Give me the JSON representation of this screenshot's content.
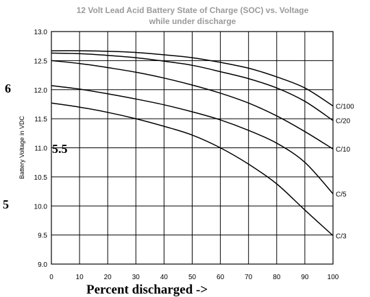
{
  "chart_data": {
    "type": "line",
    "title": "12 Volt Lead Acid Battery State of Charge (SOC) vs. Voltage",
    "subtitle": "while under discharge",
    "ylabel": "Battery Voltage in VDC",
    "xlabel": "Percent discharged ->",
    "xlim": [
      0,
      100
    ],
    "ylim": [
      9.0,
      13.0
    ],
    "xticks": [
      "0",
      "10",
      "20",
      "30",
      "40",
      "50",
      "60",
      "70",
      "80",
      "90",
      "100"
    ],
    "yticks": [
      "9.0",
      "9.5",
      "10.0",
      "10.5",
      "11.0",
      "11.5",
      "12.0",
      "12.5",
      "13.0"
    ],
    "grid": true,
    "series": [
      {
        "name": "C/100",
        "x": [
          0,
          10,
          20,
          30,
          40,
          50,
          60,
          70,
          80,
          90,
          100
        ],
        "y": [
          12.67,
          12.67,
          12.66,
          12.64,
          12.6,
          12.55,
          12.47,
          12.37,
          12.22,
          12.03,
          11.72
        ]
      },
      {
        "name": "C/20",
        "x": [
          0,
          10,
          20,
          30,
          40,
          50,
          60,
          70,
          80,
          90,
          100
        ],
        "y": [
          12.63,
          12.62,
          12.59,
          12.55,
          12.49,
          12.42,
          12.31,
          12.19,
          12.03,
          11.8,
          11.47
        ]
      },
      {
        "name": "C/10",
        "x": [
          0,
          10,
          20,
          30,
          40,
          50,
          60,
          70,
          80,
          90,
          100
        ],
        "y": [
          12.5,
          12.45,
          12.38,
          12.3,
          12.2,
          12.08,
          11.94,
          11.77,
          11.55,
          11.28,
          10.98
        ]
      },
      {
        "name": "C/5",
        "x": [
          0,
          10,
          20,
          30,
          40,
          50,
          60,
          70,
          80,
          90,
          100
        ],
        "y": [
          12.07,
          12.01,
          11.93,
          11.84,
          11.74,
          11.62,
          11.48,
          11.3,
          11.08,
          10.75,
          10.21
        ]
      },
      {
        "name": "C/3",
        "x": [
          0,
          10,
          20,
          30,
          40,
          50,
          60,
          70,
          80,
          90,
          100
        ],
        "y": [
          11.77,
          11.7,
          11.61,
          11.5,
          11.37,
          11.22,
          11.0,
          10.72,
          10.38,
          9.93,
          9.49
        ]
      }
    ]
  },
  "annotations": {
    "label_6": "6",
    "label_5_5": "5.5",
    "label_5": "5"
  }
}
